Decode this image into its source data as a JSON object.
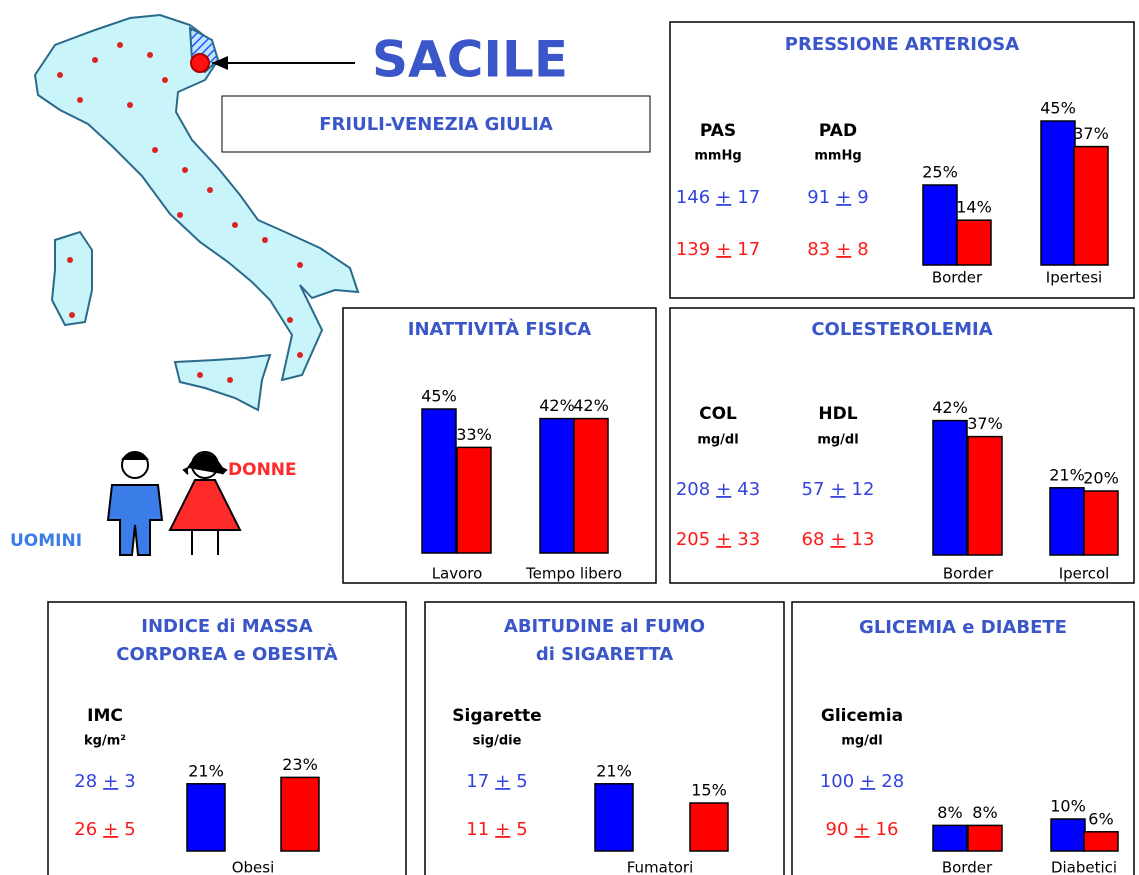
{
  "header": {
    "city": "SACILE",
    "region": "FRIULI-VENEZIA GIULIA"
  },
  "legend": {
    "men": "UOMINI",
    "women": "DONNE"
  },
  "sign": "+",
  "panels": [
    {
      "title": [
        "PRESSIONE ARTERIOSA"
      ],
      "stats": [
        {
          "name": "PAS",
          "unit": "mmHg",
          "values": [
            [
              146,
              17
            ],
            [
              139,
              17
            ]
          ]
        },
        {
          "name": "PAD",
          "unit": "mmHg",
          "values": [
            [
              91,
              9
            ],
            [
              83,
              8
            ]
          ]
        }
      ],
      "chart": {
        "type": "bar",
        "categories": [
          "Border",
          "Ipertesi"
        ],
        "series": [
          {
            "color": "#0000ff",
            "values": [
              25,
              45
            ],
            "value_labels": [
              "25%",
              "45%"
            ]
          },
          {
            "color": "#ff0000",
            "values": [
              14,
              37
            ],
            "value_labels": [
              "14%",
              "37%"
            ]
          }
        ]
      }
    },
    {
      "title": [
        "INATTIVITÀ FISICA"
      ],
      "stats": [],
      "chart": {
        "type": "bar",
        "categories": [
          "Lavoro",
          "Tempo libero"
        ],
        "series": [
          {
            "color": "#0000ff",
            "values": [
              45,
              42
            ],
            "value_labels": [
              "45%",
              "42%"
            ]
          },
          {
            "color": "#ff0000",
            "values": [
              33,
              42
            ],
            "value_labels": [
              "33%",
              "42%"
            ]
          }
        ]
      }
    },
    {
      "title": [
        "COLESTEROLEMIA"
      ],
      "stats": [
        {
          "name": "COL",
          "unit": "mg/dl",
          "values": [
            [
              208,
              43
            ],
            [
              205,
              33
            ]
          ]
        },
        {
          "name": "HDL",
          "unit": "mg/dl",
          "values": [
            [
              57,
              12
            ],
            [
              68,
              13
            ]
          ]
        }
      ],
      "chart": {
        "type": "bar",
        "categories": [
          "Border",
          "Ipercol"
        ],
        "series": [
          {
            "color": "#0000ff",
            "values": [
              42,
              21
            ],
            "value_labels": [
              "42%",
              "21%"
            ]
          },
          {
            "color": "#ff0000",
            "values": [
              37,
              20
            ],
            "value_labels": [
              "37%",
              "20%"
            ]
          }
        ]
      }
    },
    {
      "title": [
        "INDICE di MASSA",
        "CORPOREA e OBESITÀ"
      ],
      "stats": [
        {
          "name": "IMC",
          "unit": "kg/m²",
          "values": [
            [
              28,
              3
            ],
            [
              26,
              5
            ]
          ]
        }
      ],
      "chart": {
        "type": "bar",
        "categories": [
          "Obesi"
        ],
        "series": [
          {
            "color": "#0000ff",
            "values": [
              21
            ],
            "value_labels": [
              "21%"
            ]
          },
          {
            "color": "#ff0000",
            "values": [
              23
            ],
            "value_labels": [
              "23%"
            ]
          }
        ]
      }
    },
    {
      "title": [
        "ABITUDINE al FUMO",
        "di SIGARETTA"
      ],
      "stats": [
        {
          "name": "Sigarette",
          "unit": "sig/die",
          "values": [
            [
              17,
              5
            ],
            [
              11,
              5
            ]
          ]
        }
      ],
      "chart": {
        "type": "bar",
        "categories": [
          "Fumatori"
        ],
        "series": [
          {
            "color": "#0000ff",
            "values": [
              21
            ],
            "value_labels": [
              "21%"
            ]
          },
          {
            "color": "#ff0000",
            "values": [
              15
            ],
            "value_labels": [
              "15%"
            ]
          }
        ]
      }
    },
    {
      "title": [
        "GLICEMIA e DIABETE"
      ],
      "stats": [
        {
          "name": "Glicemia",
          "unit": "mg/dl",
          "values": [
            [
              100,
              28
            ],
            [
              90,
              16
            ]
          ]
        }
      ],
      "chart": {
        "type": "bar",
        "categories": [
          "Border",
          "Diabetici"
        ],
        "series": [
          {
            "color": "#0000ff",
            "values": [
              8,
              10
            ],
            "value_labels": [
              "8%",
              "10%"
            ]
          },
          {
            "color": "#ff0000",
            "values": [
              8,
              6
            ],
            "value_labels": [
              "8%",
              "6%"
            ]
          }
        ]
      }
    }
  ]
}
